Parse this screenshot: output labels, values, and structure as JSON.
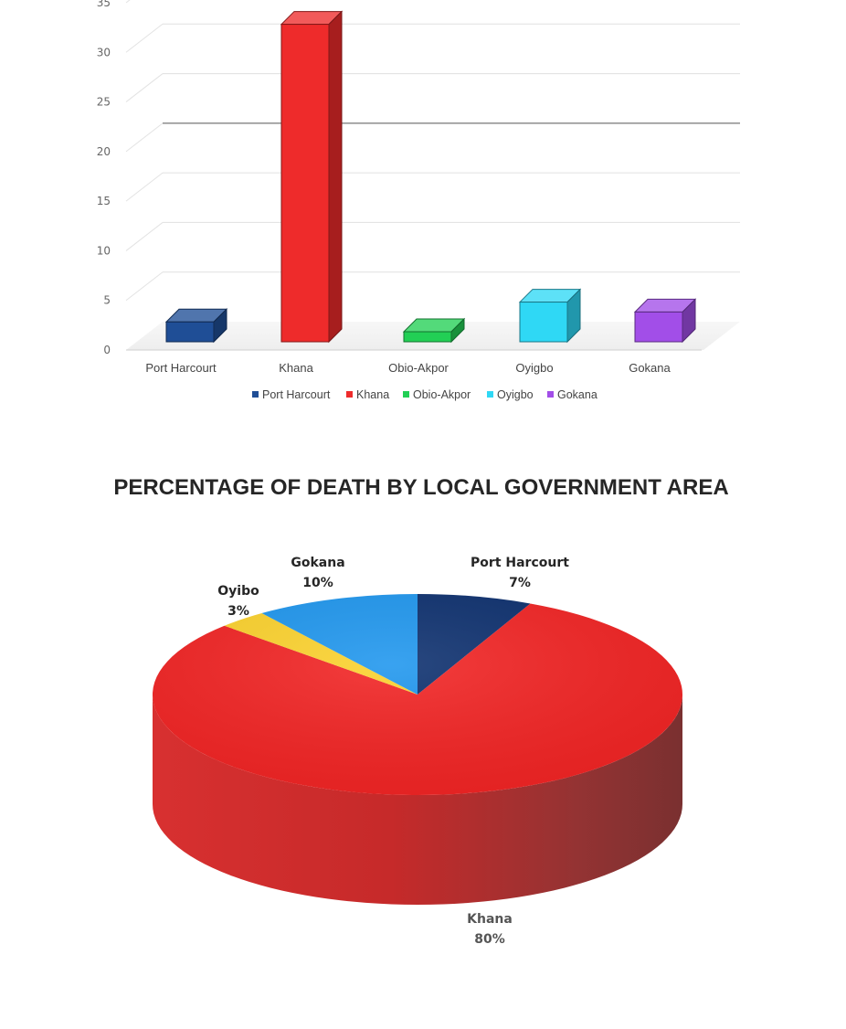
{
  "chart_data": [
    {
      "type": "bar",
      "title": "",
      "xlabel": "",
      "ylabel": "",
      "categories": [
        "Port Harcourt",
        "Khana",
        "Obio-Akpor",
        "Oyigbo",
        "Gokana"
      ],
      "values": [
        2,
        32,
        0,
        4,
        3
      ],
      "colors": [
        "#1f4e96",
        "#ee2b2b",
        "#22cf55",
        "#2fd8f5",
        "#a24ee8"
      ],
      "ylim": [
        0,
        35
      ],
      "yticks": [
        "0",
        "5",
        "10",
        "15",
        "20",
        "25",
        "30",
        "35"
      ],
      "grid": true,
      "legend": {
        "position": "bottom",
        "entries": [
          "Port Harcourt",
          "Khana",
          "Obio-Akpor",
          "Oyigbo",
          "Gokana"
        ]
      }
    },
    {
      "type": "pie",
      "title": "PERCENTAGE OF DEATH BY LOCAL GOVERNMENT AREA",
      "slices": [
        {
          "name": "Port Harcourt",
          "value": 7,
          "label": "7%",
          "color": "#0c2f6e"
        },
        {
          "name": "Khana",
          "value": 80,
          "label": "80%",
          "color": "#f22323"
        },
        {
          "name": "Oyibo",
          "value": 3,
          "label": "3%",
          "color": "#fcd22c"
        },
        {
          "name": "Gokana",
          "value": 10,
          "label": "10%",
          "color": "#1e96ee"
        }
      ]
    }
  ]
}
